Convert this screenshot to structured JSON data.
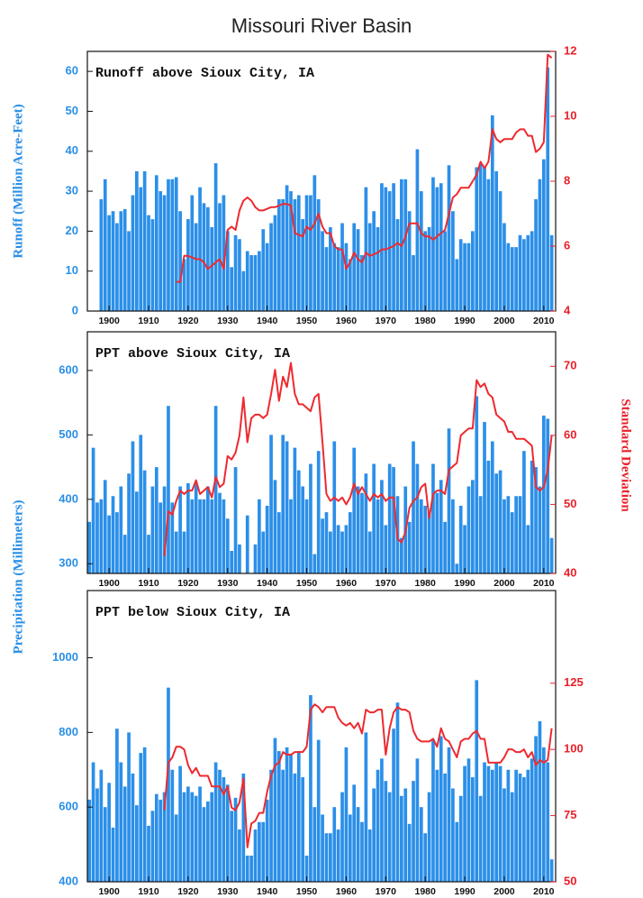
{
  "title": "Missouri River Basin",
  "chart_data": [
    {
      "type": "bar",
      "title": "Runoff above Sioux City, IA",
      "ylabel": "Runoff (Million Acre-Feet)",
      "x": [
        1898,
        1899,
        1900,
        1901,
        1902,
        1903,
        1904,
        1905,
        1906,
        1907,
        1908,
        1909,
        1910,
        1911,
        1912,
        1913,
        1914,
        1915,
        1916,
        1917,
        1918,
        1919,
        1920,
        1921,
        1922,
        1923,
        1924,
        1925,
        1926,
        1927,
        1928,
        1929,
        1930,
        1931,
        1932,
        1933,
        1934,
        1935,
        1936,
        1937,
        1938,
        1939,
        1940,
        1941,
        1942,
        1943,
        1944,
        1945,
        1946,
        1947,
        1948,
        1949,
        1950,
        1951,
        1952,
        1953,
        1954,
        1955,
        1956,
        1957,
        1958,
        1959,
        1960,
        1961,
        1962,
        1963,
        1964,
        1965,
        1966,
        1967,
        1968,
        1969,
        1970,
        1971,
        1972,
        1973,
        1974,
        1975,
        1976,
        1977,
        1978,
        1979,
        1980,
        1981,
        1982,
        1983,
        1984,
        1985,
        1986,
        1987,
        1988,
        1989,
        1990,
        1991,
        1992,
        1993,
        1994,
        1995,
        1996,
        1997,
        1998,
        1999,
        2000,
        2001,
        2002,
        2003,
        2004,
        2005,
        2006,
        2007,
        2008,
        2009,
        2010,
        2011,
        2012
      ],
      "series": [
        {
          "type": "bar",
          "color": "#2b8fe8",
          "values": [
            28,
            33,
            24,
            25,
            22,
            25,
            25.5,
            20,
            29,
            35,
            31,
            35,
            24,
            23,
            34,
            30,
            29,
            33,
            33,
            33.5,
            25,
            13,
            23,
            29,
            22,
            31,
            27,
            26,
            21,
            37,
            27,
            29,
            20,
            11,
            19,
            18,
            10,
            15,
            14,
            14,
            15,
            20.5,
            17,
            22,
            24,
            28,
            28,
            31.5,
            30,
            28,
            29,
            23,
            29,
            29,
            34,
            28,
            20,
            16,
            21,
            17,
            16,
            22,
            17,
            13,
            22,
            20.5,
            14,
            31,
            22,
            25,
            21,
            32,
            31,
            30,
            32,
            23,
            33,
            33,
            25,
            14,
            40.5,
            30,
            20,
            21,
            33.5,
            31,
            32,
            20,
            36.5,
            25,
            13,
            18,
            17,
            17,
            20,
            36,
            37,
            36,
            33,
            49,
            35,
            30,
            22,
            17,
            16,
            16,
            19,
            18,
            19,
            20,
            28,
            33,
            38,
            61,
            19
          ]
        },
        {
          "type": "line",
          "axis": "y2",
          "color": "#ee2a2f",
          "values": [
            null,
            null,
            null,
            null,
            null,
            null,
            null,
            null,
            null,
            null,
            null,
            null,
            null,
            null,
            null,
            null,
            null,
            null,
            null,
            4.9,
            4.9,
            5.7,
            5.7,
            5.65,
            5.6,
            5.6,
            5.5,
            5.3,
            5.4,
            5.5,
            5.6,
            5.3,
            6.5,
            6.6,
            6.5,
            7.1,
            7.4,
            7.5,
            7.4,
            7.2,
            7.1,
            7.1,
            7.15,
            7.2,
            7.2,
            7.25,
            7.3,
            7.3,
            7.25,
            6.4,
            6.35,
            6.3,
            6.6,
            6.5,
            6.7,
            7.0,
            6.6,
            6.4,
            6.4,
            6.0,
            5.9,
            5.9,
            5.3,
            5.5,
            5.8,
            5.6,
            5.5,
            5.8,
            5.7,
            5.75,
            5.8,
            5.9,
            5.9,
            5.95,
            6.0,
            6.1,
            6.0,
            6.3,
            6.7,
            6.7,
            6.7,
            6.4,
            6.3,
            6.3,
            6.2,
            6.3,
            6.4,
            6.5,
            7.0,
            7.5,
            7.6,
            7.8,
            7.8,
            7.8,
            8.0,
            8.2,
            8.6,
            8.4,
            8.6,
            9.6,
            9.3,
            9.2,
            9.3,
            9.3,
            9.3,
            9.5,
            9.6,
            9.6,
            9.4,
            9.4,
            8.9,
            9.0,
            9.2,
            11.9,
            11.8
          ]
        }
      ],
      "xlim": [
        1894.5,
        2013
      ],
      "xticks": [
        1900,
        1910,
        1920,
        1930,
        1940,
        1950,
        1960,
        1970,
        1980,
        1990,
        2000,
        2010
      ],
      "ylim": [
        0,
        65
      ],
      "yticks": [
        0,
        10,
        20,
        30,
        40,
        50,
        60
      ],
      "y2lim": [
        4,
        12
      ],
      "y2ticks": [
        4,
        6,
        8,
        10,
        12
      ]
    },
    {
      "type": "bar",
      "title": "PPT above Sioux City, IA",
      "ylabel": "Precipitation (Millimeters)",
      "y2label": "Standard Deviation",
      "x": [
        1895,
        1896,
        1897,
        1898,
        1899,
        1900,
        1901,
        1902,
        1903,
        1904,
        1905,
        1906,
        1907,
        1908,
        1909,
        1910,
        1911,
        1912,
        1913,
        1914,
        1915,
        1916,
        1917,
        1918,
        1919,
        1920,
        1921,
        1922,
        1923,
        1924,
        1925,
        1926,
        1927,
        1928,
        1929,
        1930,
        1931,
        1932,
        1933,
        1934,
        1935,
        1936,
        1937,
        1938,
        1939,
        1940,
        1941,
        1942,
        1943,
        1944,
        1945,
        1946,
        1947,
        1948,
        1949,
        1950,
        1951,
        1952,
        1953,
        1954,
        1955,
        1956,
        1957,
        1958,
        1959,
        1960,
        1961,
        1962,
        1963,
        1964,
        1965,
        1966,
        1967,
        1968,
        1969,
        1970,
        1971,
        1972,
        1973,
        1974,
        1975,
        1976,
        1977,
        1978,
        1979,
        1980,
        1981,
        1982,
        1983,
        1984,
        1985,
        1986,
        1987,
        1988,
        1989,
        1990,
        1991,
        1992,
        1993,
        1994,
        1995,
        1996,
        1997,
        1998,
        1999,
        2000,
        2001,
        2002,
        2003,
        2004,
        2005,
        2006,
        2007,
        2008,
        2009,
        2010,
        2011,
        2012
      ],
      "series": [
        {
          "type": "bar",
          "color": "#2b8fe8",
          "values": [
            365,
            480,
            395,
            400,
            430,
            375,
            405,
            380,
            420,
            345,
            440,
            490,
            412,
            500,
            445,
            345,
            420,
            450,
            395,
            420,
            545,
            395,
            350,
            420,
            350,
            425,
            400,
            425,
            400,
            400,
            420,
            400,
            545,
            410,
            400,
            370,
            320,
            450,
            330,
            280,
            375,
            275,
            330,
            400,
            350,
            390,
            500,
            430,
            380,
            500,
            490,
            400,
            480,
            445,
            420,
            400,
            455,
            315,
            475,
            370,
            380,
            350,
            490,
            360,
            350,
            360,
            380,
            480,
            420,
            410,
            440,
            350,
            455,
            400,
            430,
            360,
            455,
            450,
            405,
            340,
            420,
            365,
            490,
            455,
            400,
            390,
            380,
            455,
            410,
            430,
            365,
            510,
            400,
            300,
            390,
            360,
            420,
            430,
            560,
            405,
            520,
            460,
            490,
            440,
            445,
            400,
            405,
            380,
            405,
            405,
            475,
            360,
            460,
            450,
            420,
            530,
            525,
            340
          ]
        },
        {
          "type": "line",
          "axis": "y2",
          "color": "#ee2a2f",
          "values": [
            null,
            null,
            null,
            null,
            null,
            null,
            null,
            null,
            null,
            null,
            null,
            null,
            null,
            null,
            null,
            null,
            null,
            null,
            null,
            42.5,
            49,
            48.5,
            50.5,
            52,
            51.5,
            52,
            52,
            53.5,
            51.5,
            52,
            52.5,
            51,
            54,
            52.5,
            53,
            57,
            56.5,
            57.5,
            60,
            65.5,
            59,
            62.5,
            63,
            63,
            62.5,
            63,
            66,
            69.5,
            65,
            68.5,
            67,
            70.5,
            66,
            64.5,
            64.5,
            64,
            63.5,
            65.5,
            66,
            59,
            51.5,
            50.5,
            51,
            50.5,
            51,
            50,
            51,
            53,
            51.5,
            52.5,
            51.5,
            50.5,
            51.5,
            51,
            51.5,
            50.5,
            51,
            51,
            45,
            44.5,
            46,
            49.5,
            50.5,
            51,
            52.5,
            53,
            48,
            51.5,
            52,
            52,
            51.5,
            55,
            55.5,
            56,
            60,
            60.5,
            61,
            61,
            68,
            67,
            67.5,
            66,
            65.5,
            63,
            62.5,
            62,
            60.5,
            60.5,
            59.5,
            59.5,
            59.5,
            59,
            58.5,
            52.5,
            52,
            52.5,
            55,
            60
          ]
        }
      ],
      "xlim": [
        1894.5,
        2013
      ],
      "xticks": [
        1900,
        1910,
        1920,
        1930,
        1940,
        1950,
        1960,
        1970,
        1980,
        1990,
        2000,
        2010
      ],
      "ylim": [
        285,
        660
      ],
      "yticks": [
        300,
        400,
        500,
        600
      ],
      "y2lim": [
        40,
        75
      ],
      "y2ticks": [
        40,
        50,
        60,
        70
      ]
    },
    {
      "type": "bar",
      "title": "PPT below Sioux City, IA",
      "x": [
        1895,
        1896,
        1897,
        1898,
        1899,
        1900,
        1901,
        1902,
        1903,
        1904,
        1905,
        1906,
        1907,
        1908,
        1909,
        1910,
        1911,
        1912,
        1913,
        1914,
        1915,
        1916,
        1917,
        1918,
        1919,
        1920,
        1921,
        1922,
        1923,
        1924,
        1925,
        1926,
        1927,
        1928,
        1929,
        1930,
        1931,
        1932,
        1933,
        1934,
        1935,
        1936,
        1937,
        1938,
        1939,
        1940,
        1941,
        1942,
        1943,
        1944,
        1945,
        1946,
        1947,
        1948,
        1949,
        1950,
        1951,
        1952,
        1953,
        1954,
        1955,
        1956,
        1957,
        1958,
        1959,
        1960,
        1961,
        1962,
        1963,
        1964,
        1965,
        1966,
        1967,
        1968,
        1969,
        1970,
        1971,
        1972,
        1973,
        1974,
        1975,
        1976,
        1977,
        1978,
        1979,
        1980,
        1981,
        1982,
        1983,
        1984,
        1985,
        1986,
        1987,
        1988,
        1989,
        1990,
        1991,
        1992,
        1993,
        1994,
        1995,
        1996,
        1997,
        1998,
        1999,
        2000,
        2001,
        2002,
        2003,
        2004,
        2005,
        2006,
        2007,
        2008,
        2009,
        2010,
        2011,
        2012
      ],
      "series": [
        {
          "type": "bar",
          "color": "#2b8fe8",
          "values": [
            620,
            720,
            650,
            700,
            600,
            665,
            545,
            810,
            720,
            655,
            800,
            690,
            605,
            745,
            760,
            550,
            590,
            635,
            620,
            640,
            920,
            700,
            580,
            710,
            640,
            655,
            640,
            630,
            655,
            600,
            615,
            640,
            720,
            700,
            680,
            660,
            590,
            625,
            540,
            690,
            470,
            470,
            540,
            560,
            560,
            620,
            700,
            785,
            750,
            700,
            760,
            740,
            690,
            750,
            680,
            470,
            900,
            600,
            780,
            580,
            530,
            530,
            600,
            540,
            640,
            760,
            580,
            660,
            600,
            560,
            800,
            540,
            650,
            700,
            730,
            670,
            640,
            810,
            880,
            630,
            650,
            555,
            670,
            730,
            600,
            530,
            640,
            780,
            700,
            790,
            690,
            760,
            650,
            560,
            630,
            710,
            730,
            680,
            940,
            630,
            720,
            710,
            700,
            720,
            710,
            650,
            700,
            640,
            700,
            690,
            680,
            700,
            730,
            790,
            830,
            760,
            720,
            460
          ]
        },
        {
          "type": "line",
          "axis": "y2",
          "color": "#ee2a2f",
          "values": [
            null,
            null,
            null,
            null,
            null,
            null,
            null,
            null,
            null,
            null,
            null,
            null,
            null,
            null,
            null,
            null,
            null,
            null,
            null,
            77,
            95,
            97,
            101,
            101,
            100,
            94,
            91,
            93,
            90,
            90,
            90,
            86,
            86,
            86,
            83,
            86,
            78,
            77,
            80,
            89,
            63,
            72,
            73,
            76,
            76,
            84,
            90,
            94,
            95,
            99,
            98,
            98,
            99,
            99,
            99,
            101,
            115,
            117,
            116,
            114,
            116,
            116,
            116,
            112,
            110,
            109,
            110,
            108,
            110,
            106,
            115,
            114,
            114,
            115,
            115,
            98,
            108,
            114,
            116,
            115,
            115,
            114,
            107,
            104,
            103,
            103,
            103,
            104,
            101,
            108,
            104,
            103,
            100,
            97,
            103,
            104,
            104,
            106,
            107,
            104,
            104,
            95,
            95,
            95,
            95,
            97,
            100,
            100,
            99,
            99,
            100,
            97,
            99,
            94,
            96,
            95,
            96,
            108
          ]
        }
      ],
      "xlim": [
        1894.5,
        2013
      ],
      "xticks": [
        1900,
        1910,
        1920,
        1930,
        1940,
        1950,
        1960,
        1970,
        1980,
        1990,
        2000,
        2010
      ],
      "ylim": [
        400,
        1180
      ],
      "yticks": [
        400,
        600,
        800,
        1000
      ],
      "y2lim": [
        50,
        160
      ],
      "y2ticks": [
        50,
        75,
        100,
        125
      ]
    }
  ]
}
